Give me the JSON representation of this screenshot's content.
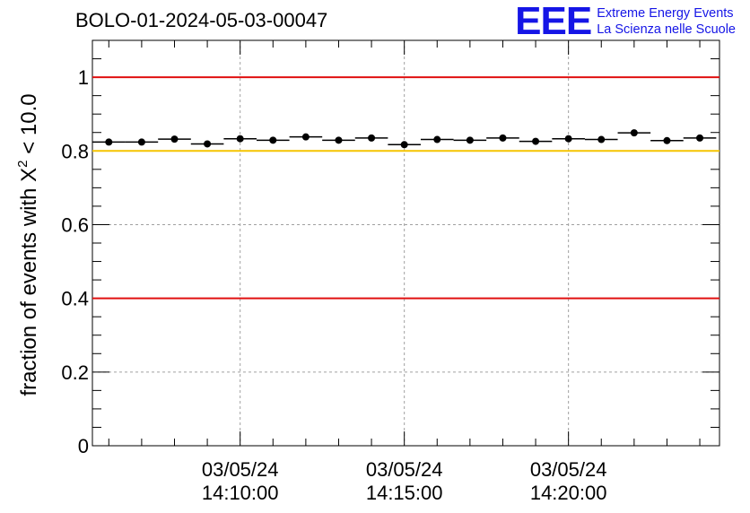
{
  "header": {
    "run_id": "BOLO-01-2024-05-03-00047"
  },
  "logo": {
    "mark": "EEE",
    "line1": "Extreme Energy Events",
    "line2": "La Scienza nelle Scuole",
    "color": "#1515e6"
  },
  "chart_data": {
    "type": "scatter",
    "title": "BOLO-01-2024-05-03-00047",
    "ylabel_parts": {
      "prefix": "fraction of events with ",
      "symbol": "X",
      "superscript": "2",
      "suffix": " < 10.0"
    },
    "ylim": [
      0,
      1.1
    ],
    "yticks": [
      0,
      0.2,
      0.4,
      0.6,
      0.8,
      1
    ],
    "ytick_labels": [
      "0",
      "0.2",
      "0.4",
      "0.6",
      "0.8",
      "1"
    ],
    "xlim": [
      "14:05:30",
      "14:24:36"
    ],
    "xticks": [
      {
        "time": "14:10:00",
        "date": "03/05/24",
        "label": "14:10:00"
      },
      {
        "time": "14:15:00",
        "date": "03/05/24",
        "label": "14:15:00"
      },
      {
        "time": "14:20:00",
        "date": "03/05/24",
        "label": "14:20:00"
      }
    ],
    "grid": true,
    "reference_lines": [
      {
        "y": 1.0,
        "color": "#e01010"
      },
      {
        "y": 0.8,
        "color": "#f5c400"
      },
      {
        "y": 0.4,
        "color": "#e01010"
      }
    ],
    "bin_width_seconds": 60,
    "series": [
      {
        "points": [
          {
            "x": "14:06:00",
            "y": 0.824
          },
          {
            "x": "14:07:00",
            "y": 0.824
          },
          {
            "x": "14:08:00",
            "y": 0.832
          },
          {
            "x": "14:09:00",
            "y": 0.819
          },
          {
            "x": "14:10:00",
            "y": 0.833
          },
          {
            "x": "14:11:00",
            "y": 0.829
          },
          {
            "x": "14:12:00",
            "y": 0.838
          },
          {
            "x": "14:13:00",
            "y": 0.829
          },
          {
            "x": "14:14:00",
            "y": 0.835
          },
          {
            "x": "14:15:00",
            "y": 0.817
          },
          {
            "x": "14:16:00",
            "y": 0.831
          },
          {
            "x": "14:17:00",
            "y": 0.829
          },
          {
            "x": "14:18:00",
            "y": 0.835
          },
          {
            "x": "14:19:00",
            "y": 0.826
          },
          {
            "x": "14:20:00",
            "y": 0.833
          },
          {
            "x": "14:21:00",
            "y": 0.831
          },
          {
            "x": "14:22:00",
            "y": 0.849
          },
          {
            "x": "14:23:00",
            "y": 0.828
          },
          {
            "x": "14:24:00",
            "y": 0.835
          }
        ],
        "color": "#000000"
      }
    ]
  }
}
